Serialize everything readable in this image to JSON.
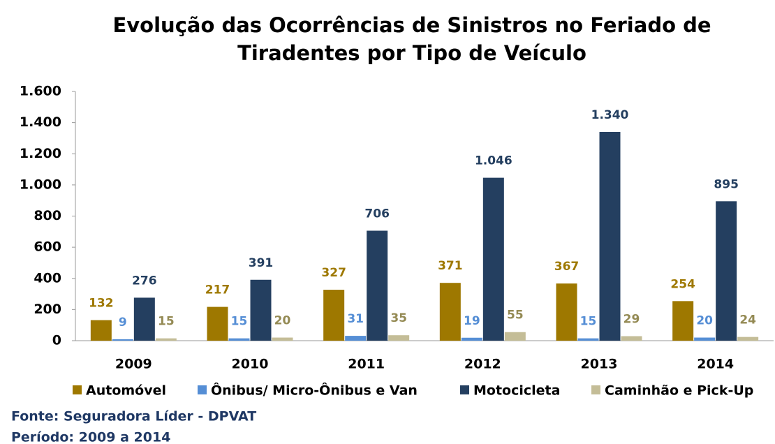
{
  "chart_data": {
    "type": "bar",
    "title": [
      "Evolução das Ocorrências de Sinistros no Feriado de",
      "Tiradentes por Tipo de Veículo"
    ],
    "categories": [
      "2009",
      "2010",
      "2011",
      "2012",
      "2013",
      "2014"
    ],
    "series": [
      {
        "name": "Automóvel",
        "color": "#9e7800",
        "label_color": "#9e7800",
        "values": [
          132,
          217,
          327,
          371,
          367,
          254
        ]
      },
      {
        "name": "Ônibus/ Micro-Ônibus e Van",
        "color": "#558ed5",
        "label_color": "#558ed5",
        "values": [
          9,
          15,
          31,
          19,
          15,
          20
        ]
      },
      {
        "name": "Motocicleta",
        "color": "#243f60",
        "label_color": "#243f60",
        "values": [
          276,
          391,
          706,
          1046,
          1340,
          895
        ],
        "value_labels": [
          "276",
          "391",
          "706",
          "1.046",
          "1.340",
          "895"
        ]
      },
      {
        "name": "Caminhão e Pick-Up",
        "color": "#c4bd97",
        "label_color": "#948a54",
        "values": [
          15,
          20,
          35,
          55,
          29,
          24
        ]
      }
    ],
    "ylim": [
      0,
      1600
    ],
    "yticks": [
      0,
      200,
      400,
      600,
      800,
      {
        "value": 1000,
        "label": "1.000"
      },
      {
        "value": 1200,
        "label": "1.200"
      },
      {
        "value": 1400,
        "label": "1.400"
      },
      {
        "value": 1600,
        "label": "1.600"
      }
    ],
    "legend": "bottom",
    "source": "Fonte: Seguradora Líder - DPVAT",
    "note": "Período: 2009 a 2014"
  }
}
